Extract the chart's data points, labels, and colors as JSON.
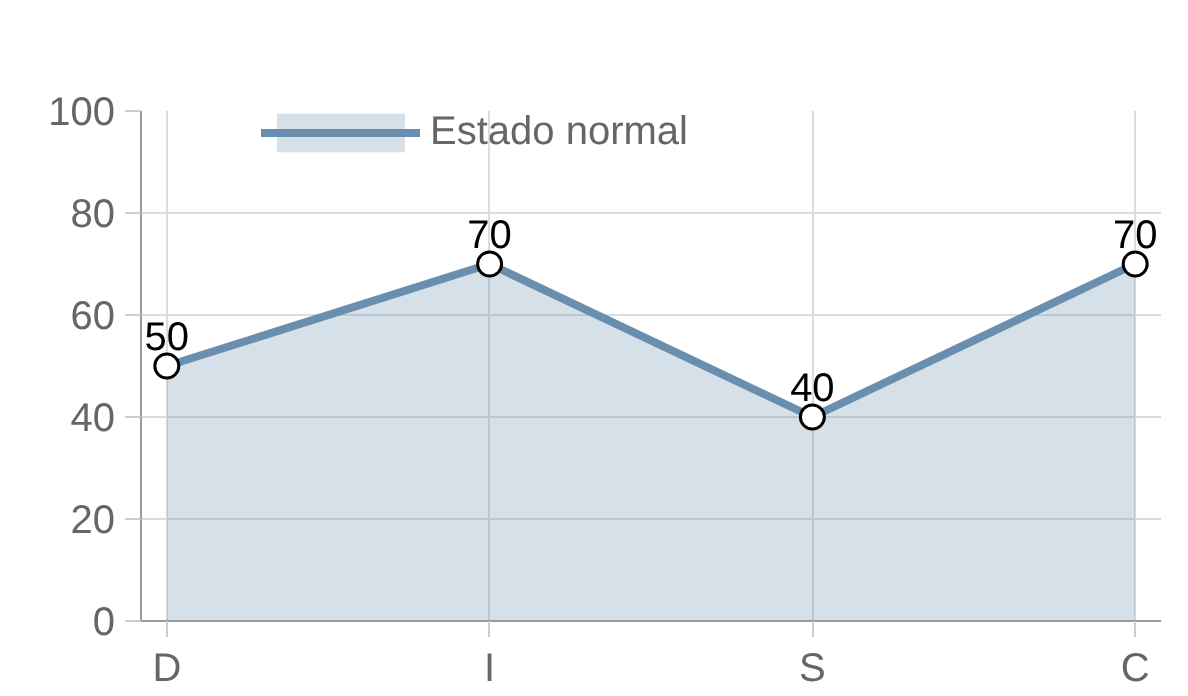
{
  "chart_data": {
    "type": "area",
    "categories": [
      "D",
      "I",
      "S",
      "C"
    ],
    "series": [
      {
        "name": "Estado normal",
        "color": "#6a8fae",
        "values": [
          50,
          70,
          40,
          70
        ]
      }
    ],
    "ylim": [
      0,
      100
    ],
    "yticks": [
      0,
      20,
      40,
      60,
      80,
      100
    ],
    "grid": true,
    "legend": "top",
    "marker": "circle",
    "data_labels": true,
    "line_style": "solid"
  }
}
